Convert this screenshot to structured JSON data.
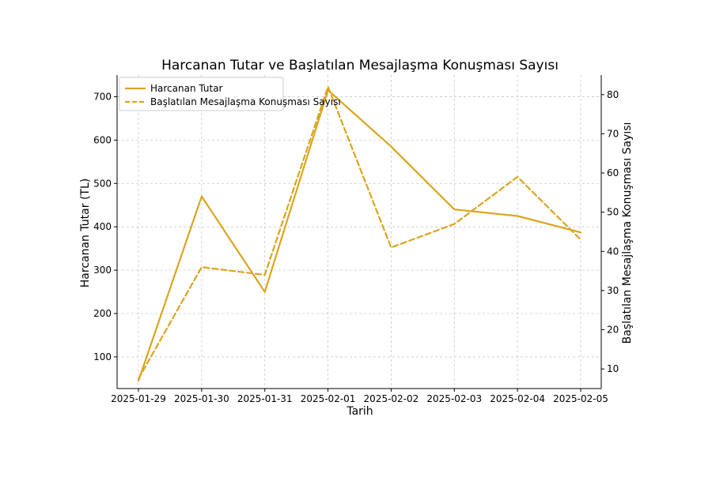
{
  "chart_data": {
    "type": "line",
    "title": "Harcanan Tutar ve Başlatılan Mesajlaşma Konuşması Sayısı",
    "xlabel": "Tarih",
    "ylabel_left": "Harcanan Tutar (TL)",
    "ylabel_right": "Başlatılan Mesajlaşma Konuşması Sayısı",
    "categories": [
      "2025-01-29",
      "2025-01-30",
      "2025-01-31",
      "2025-02-01",
      "2025-02-02",
      "2025-02-03",
      "2025-02-04",
      "2025-02-05"
    ],
    "ylim_left": [
      27,
      750
    ],
    "ylim_right": [
      5,
      85
    ],
    "yticks_left": [
      100,
      200,
      300,
      400,
      500,
      600,
      700
    ],
    "yticks_right": [
      10,
      20,
      30,
      40,
      50,
      60,
      70,
      80
    ],
    "grid": true,
    "legend_position": "top-left",
    "color": "#DAA520",
    "series": [
      {
        "name": "Harcanan Tutar",
        "axis": "left",
        "style": "solid",
        "values": [
          45,
          470,
          250,
          715,
          585,
          440,
          425,
          387
        ]
      },
      {
        "name": "Başlatılan Mesajlaşma Konuşması Sayısı",
        "axis": "right",
        "style": "dashed",
        "values": [
          7.5,
          36,
          34,
          82,
          41,
          47,
          59,
          43
        ]
      }
    ]
  }
}
